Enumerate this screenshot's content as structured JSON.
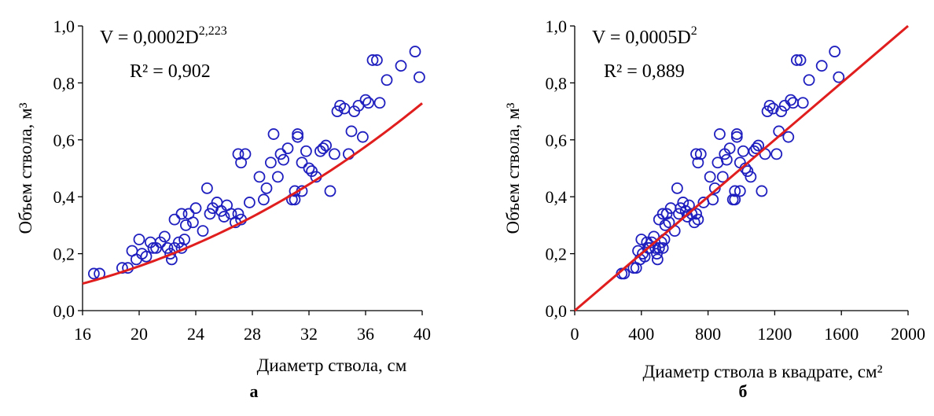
{
  "chart_data": [
    {
      "type": "scatter",
      "panel_label": "а",
      "xlabel": "Диаметр ствола, см",
      "ylabel": "Объем ствола, м³",
      "xlim": [
        16,
        40
      ],
      "ylim": [
        0.0,
        1.0
      ],
      "xticks": [
        "16",
        "20",
        "24",
        "28",
        "32",
        "36",
        "40"
      ],
      "yticks": [
        "0,0",
        "0,2",
        "0,4",
        "0,6",
        "0,8",
        "1,0"
      ],
      "grid": false,
      "marker_color": "#1f1fbf",
      "trend_color": "#e01e1e",
      "equation": "V = 0,0002D²·²²³",
      "equation_base": "V = 0,0002D",
      "equation_exp": "2,223",
      "r2": "R² = 0,902",
      "trend": {
        "kind": "power",
        "a": 0.0002,
        "b": 2.223,
        "x_from": 16,
        "x_to": 40
      },
      "x": [
        16.8,
        17.2,
        18.8,
        19.2,
        19.5,
        19.8,
        20.0,
        20.2,
        20.5,
        20.8,
        21.0,
        21.2,
        21.5,
        21.8,
        22.0,
        22.2,
        22.3,
        22.5,
        22.5,
        22.8,
        23.0,
        23.0,
        23.2,
        23.3,
        23.5,
        23.8,
        24.0,
        24.5,
        24.8,
        25.0,
        25.2,
        25.5,
        25.8,
        26.0,
        26.2,
        26.5,
        26.8,
        27.0,
        27.0,
        27.2,
        27.2,
        27.5,
        27.8,
        28.5,
        28.8,
        29.0,
        29.3,
        29.5,
        29.8,
        30.0,
        30.2,
        30.5,
        30.8,
        31.0,
        31.0,
        31.2,
        31.2,
        31.5,
        31.5,
        31.8,
        32.0,
        32.2,
        32.5,
        32.8,
        33.0,
        33.2,
        33.5,
        33.8,
        34.0,
        34.2,
        34.5,
        34.8,
        35.0,
        35.2,
        35.5,
        35.8,
        36.0,
        36.2,
        36.5,
        36.8,
        37.0,
        37.5,
        38.5,
        39.5,
        39.8
      ],
      "y": [
        0.13,
        0.13,
        0.15,
        0.15,
        0.21,
        0.18,
        0.25,
        0.2,
        0.19,
        0.24,
        0.22,
        0.22,
        0.24,
        0.26,
        0.22,
        0.2,
        0.18,
        0.32,
        0.22,
        0.24,
        0.22,
        0.34,
        0.25,
        0.3,
        0.34,
        0.31,
        0.36,
        0.28,
        0.43,
        0.34,
        0.36,
        0.38,
        0.35,
        0.33,
        0.37,
        0.34,
        0.31,
        0.34,
        0.55,
        0.32,
        0.52,
        0.55,
        0.38,
        0.47,
        0.39,
        0.43,
        0.52,
        0.62,
        0.47,
        0.55,
        0.53,
        0.57,
        0.39,
        0.42,
        0.39,
        0.62,
        0.61,
        0.52,
        0.42,
        0.56,
        0.5,
        0.49,
        0.47,
        0.56,
        0.57,
        0.58,
        0.42,
        0.55,
        0.7,
        0.72,
        0.71,
        0.55,
        0.63,
        0.7,
        0.72,
        0.61,
        0.74,
        0.73,
        0.88,
        0.88,
        0.73,
        0.81,
        0.86,
        0.91,
        0.82
      ]
    },
    {
      "type": "scatter",
      "panel_label": "б",
      "xlabel": "Диаметр ствола в квадрате, см²",
      "ylabel": "Объем ствола, м³",
      "xlim": [
        0,
        2000
      ],
      "ylim": [
        0.0,
        1.0
      ],
      "xticks": [
        "0",
        "400",
        "800",
        "1200",
        "1600",
        "2000"
      ],
      "yticks": [
        "0,0",
        "0,2",
        "0,4",
        "0,6",
        "0,8",
        "1,0"
      ],
      "grid": false,
      "marker_color": "#1f1fbf",
      "trend_color": "#e01e1e",
      "equation": "V = 0,0005D²",
      "equation_base": "V = 0,0005D",
      "equation_exp": "2",
      "r2": "R² = 0,889",
      "trend": {
        "kind": "linear",
        "slope": 0.0005,
        "x_from": 0,
        "x_to": 2000
      },
      "x": [
        282,
        296,
        353,
        369,
        380,
        392,
        400,
        408,
        420,
        433,
        441,
        449,
        462,
        475,
        484,
        493,
        497,
        506,
        506,
        520,
        529,
        529,
        538,
        543,
        552,
        566,
        576,
        600,
        615,
        625,
        635,
        650,
        666,
        676,
        686,
        702,
        718,
        729,
        729,
        740,
        740,
        756,
        773,
        812,
        829,
        841,
        858,
        870,
        888,
        900,
        912,
        930,
        949,
        961,
        961,
        973,
        973,
        992,
        992,
        1011,
        1024,
        1037,
        1056,
        1076,
        1089,
        1102,
        1122,
        1142,
        1156,
        1170,
        1190,
        1211,
        1225,
        1239,
        1260,
        1282,
        1296,
        1310,
        1332,
        1354,
        1369,
        1406,
        1482,
        1560,
        1584
      ],
      "y": [
        0.13,
        0.13,
        0.15,
        0.15,
        0.21,
        0.18,
        0.25,
        0.2,
        0.19,
        0.24,
        0.22,
        0.22,
        0.24,
        0.26,
        0.22,
        0.2,
        0.18,
        0.32,
        0.22,
        0.24,
        0.22,
        0.34,
        0.25,
        0.3,
        0.34,
        0.31,
        0.36,
        0.28,
        0.43,
        0.34,
        0.36,
        0.38,
        0.35,
        0.33,
        0.37,
        0.34,
        0.31,
        0.34,
        0.55,
        0.32,
        0.52,
        0.55,
        0.38,
        0.47,
        0.39,
        0.43,
        0.52,
        0.62,
        0.47,
        0.55,
        0.53,
        0.57,
        0.39,
        0.42,
        0.39,
        0.62,
        0.61,
        0.52,
        0.42,
        0.56,
        0.5,
        0.49,
        0.47,
        0.56,
        0.57,
        0.58,
        0.42,
        0.55,
        0.7,
        0.72,
        0.71,
        0.55,
        0.63,
        0.7,
        0.72,
        0.61,
        0.74,
        0.73,
        0.88,
        0.88,
        0.73,
        0.81,
        0.86,
        0.91,
        0.82
      ]
    }
  ]
}
